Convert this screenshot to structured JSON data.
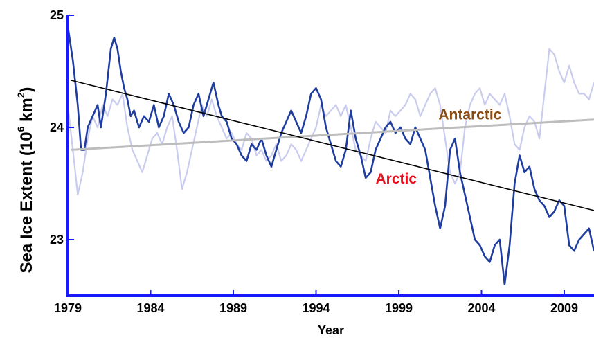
{
  "chart_data": {
    "type": "line",
    "title": "",
    "xlabel": "Year",
    "ylabel": "Sea Ice Extent (10",
    "ylabel_exp": "6",
    "ylabel_unit": " km",
    "ylabel_unit_exp": "2",
    "ylabel_close": ")",
    "xlim": [
      1979,
      2010.8
    ],
    "ylim": [
      22.5,
      25.0
    ],
    "x_ticks": [
      "1979",
      "1984",
      "1989",
      "1994",
      "1999",
      "2004",
      "2009"
    ],
    "y_ticks": [
      "25",
      "24",
      "23"
    ],
    "x_tick_values": [
      1979,
      1984,
      1989,
      1994,
      1999,
      2004,
      2009
    ],
    "y_tick_values": [
      25,
      24,
      23
    ],
    "grid": false,
    "colors": {
      "arctic_series": "#1f3d9e",
      "antarctic_series": "#c9cbef",
      "arctic_trend": "#000000",
      "antarctic_trend": "#bdbdbd",
      "axis": "#1a1aff",
      "arctic_label": "#e8101a",
      "antarctic_label": "#8b4a0f"
    },
    "annotations": [
      {
        "text": "Arctic",
        "x": 1997.6,
        "y": 23.5,
        "color_key": "arctic_label"
      },
      {
        "text": "Antarctic",
        "x": 2001.4,
        "y": 24.07,
        "color_key": "antarctic_label"
      }
    ],
    "series": [
      {
        "key": "arctic",
        "x": [
          1979.0,
          1979.3,
          1979.6,
          1979.8,
          1980.0,
          1980.2,
          1980.5,
          1980.8,
          1981.0,
          1981.3,
          1981.6,
          1981.8,
          1982.0,
          1982.2,
          1982.4,
          1982.6,
          1982.8,
          1983.0,
          1983.3,
          1983.6,
          1983.9,
          1984.2,
          1984.5,
          1984.8,
          1985.1,
          1985.4,
          1985.7,
          1986.0,
          1986.3,
          1986.6,
          1986.9,
          1987.2,
          1987.5,
          1987.8,
          1988.1,
          1988.3,
          1988.6,
          1988.9,
          1989.2,
          1989.5,
          1989.8,
          1990.1,
          1990.4,
          1990.7,
          1991.0,
          1991.3,
          1991.6,
          1991.9,
          1992.2,
          1992.5,
          1992.8,
          1993.1,
          1993.4,
          1993.7,
          1994.0,
          1994.3,
          1994.6,
          1994.9,
          1995.2,
          1995.5,
          1995.8,
          1996.1,
          1996.4,
          1996.7,
          1997.0,
          1997.3,
          1997.6,
          1997.9,
          1998.2,
          1998.5,
          1998.8,
          1999.1,
          1999.4,
          1999.7,
          2000.0,
          2000.3,
          2000.6,
          2000.9,
          2001.2,
          2001.5,
          2001.8,
          2002.1,
          2002.4,
          2002.7,
          2003.0,
          2003.3,
          2003.6,
          2003.9,
          2004.2,
          2004.5,
          2004.8,
          2005.1,
          2005.4,
          2005.7,
          2006.0,
          2006.3,
          2006.6,
          2006.9,
          2007.2,
          2007.5,
          2007.8,
          2008.1,
          2008.4,
          2008.7,
          2009.0,
          2009.3,
          2009.6,
          2009.9,
          2010.2,
          2010.5,
          2010.8
        ],
        "y": [
          24.9,
          24.6,
          24.2,
          23.8,
          23.8,
          24.0,
          24.1,
          24.2,
          24.0,
          24.3,
          24.7,
          24.8,
          24.7,
          24.5,
          24.35,
          24.25,
          24.1,
          24.15,
          24.0,
          24.1,
          24.05,
          24.2,
          24.0,
          24.1,
          24.3,
          24.2,
          24.05,
          23.95,
          24.0,
          24.2,
          24.3,
          24.1,
          24.25,
          24.4,
          24.2,
          24.1,
          24.05,
          23.9,
          23.85,
          23.75,
          23.7,
          23.85,
          23.8,
          23.9,
          23.75,
          23.65,
          23.8,
          23.95,
          24.05,
          24.15,
          24.05,
          23.95,
          24.1,
          24.3,
          24.35,
          24.25,
          24.0,
          23.85,
          23.7,
          23.65,
          23.8,
          24.15,
          23.9,
          23.75,
          23.55,
          23.6,
          23.8,
          23.9,
          24.0,
          24.05,
          23.95,
          24.0,
          23.9,
          23.85,
          24.0,
          23.9,
          23.8,
          23.55,
          23.3,
          23.1,
          23.3,
          23.8,
          23.9,
          23.6,
          23.4,
          23.2,
          23.0,
          22.95,
          22.85,
          22.8,
          22.95,
          23.0,
          22.6,
          22.95,
          23.5,
          23.75,
          23.6,
          23.65,
          23.45,
          23.35,
          23.3,
          23.2,
          23.25,
          23.35,
          23.3,
          22.95,
          22.9,
          23.0,
          23.05,
          23.1,
          22.9
        ]
      },
      {
        "key": "antarctic",
        "x": [
          1979.0,
          1979.3,
          1979.6,
          1979.9,
          1980.2,
          1980.5,
          1980.8,
          1981.1,
          1981.4,
          1981.7,
          1982.0,
          1982.3,
          1982.6,
          1982.9,
          1983.2,
          1983.5,
          1983.8,
          1984.1,
          1984.4,
          1984.7,
          1985.0,
          1985.3,
          1985.6,
          1985.9,
          1986.2,
          1986.5,
          1986.8,
          1987.1,
          1987.4,
          1987.7,
          1988.0,
          1988.3,
          1988.6,
          1988.9,
          1989.2,
          1989.5,
          1989.8,
          1990.1,
          1990.4,
          1990.7,
          1991.0,
          1991.3,
          1991.6,
          1991.9,
          1992.2,
          1992.5,
          1992.8,
          1993.1,
          1993.4,
          1993.7,
          1994.0,
          1994.3,
          1994.6,
          1994.9,
          1995.2,
          1995.5,
          1995.8,
          1996.1,
          1996.4,
          1996.7,
          1997.0,
          1997.3,
          1997.6,
          1997.9,
          1998.2,
          1998.5,
          1998.8,
          1999.1,
          1999.4,
          1999.7,
          2000.0,
          2000.3,
          2000.6,
          2000.9,
          2001.2,
          2001.5,
          2001.8,
          2002.1,
          2002.4,
          2002.7,
          2003.0,
          2003.3,
          2003.6,
          2003.9,
          2004.2,
          2004.5,
          2004.8,
          2005.1,
          2005.4,
          2005.7,
          2006.0,
          2006.3,
          2006.6,
          2006.9,
          2007.2,
          2007.5,
          2007.8,
          2008.1,
          2008.4,
          2008.7,
          2009.0,
          2009.3,
          2009.6,
          2009.9,
          2010.2,
          2010.5,
          2010.8
        ],
        "y": [
          24.2,
          23.8,
          23.4,
          23.6,
          23.9,
          24.1,
          24.0,
          24.2,
          24.1,
          24.25,
          24.2,
          24.3,
          24.0,
          23.8,
          23.7,
          23.6,
          23.75,
          23.9,
          23.95,
          23.85,
          24.0,
          24.1,
          23.8,
          23.45,
          23.6,
          23.8,
          24.0,
          24.2,
          24.1,
          24.25,
          24.1,
          24.0,
          23.9,
          23.95,
          23.85,
          23.8,
          23.95,
          23.9,
          23.75,
          23.8,
          23.7,
          23.75,
          23.85,
          23.7,
          23.75,
          23.85,
          23.8,
          23.7,
          23.8,
          23.9,
          24.0,
          24.2,
          24.1,
          24.15,
          24.2,
          24.1,
          24.2,
          24.0,
          23.8,
          23.75,
          23.7,
          23.9,
          24.05,
          24.0,
          23.95,
          24.15,
          24.1,
          24.15,
          24.2,
          24.3,
          24.25,
          24.1,
          24.2,
          24.3,
          24.35,
          24.2,
          23.9,
          23.6,
          23.5,
          23.6,
          24.0,
          24.2,
          24.3,
          24.35,
          24.2,
          24.3,
          24.25,
          24.2,
          24.3,
          24.1,
          23.85,
          23.8,
          24.0,
          24.1,
          24.05,
          23.9,
          24.3,
          24.7,
          24.65,
          24.5,
          24.4,
          24.55,
          24.4,
          24.3,
          24.3,
          24.25,
          24.4
        ]
      },
      {
        "key": "arctic_trend",
        "x": [
          1979.2,
          2010.8
        ],
        "y": [
          24.42,
          23.26
        ]
      },
      {
        "key": "antarctic_trend",
        "x": [
          1979.2,
          2010.8
        ],
        "y": [
          23.8,
          24.07
        ]
      }
    ]
  }
}
